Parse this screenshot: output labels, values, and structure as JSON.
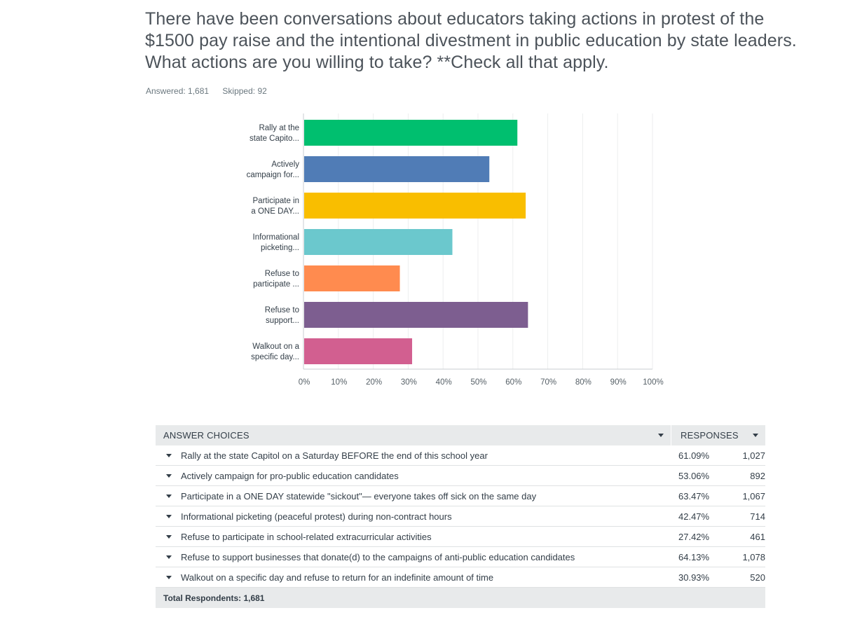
{
  "question": "There have been conversations about educators taking actions in protest of the $1500 pay raise and the intentional divestment in public education by state leaders. What actions are you willing to take? **Check all that apply.",
  "stats": {
    "answered": "Answered: 1,681",
    "skipped": "Skipped: 92"
  },
  "chart_data": {
    "type": "bar",
    "orientation": "horizontal",
    "categories": [
      [
        "Rally at the",
        "state Capito..."
      ],
      [
        "Actively",
        "campaign for..."
      ],
      [
        "Participate in",
        "a ONE DAY..."
      ],
      [
        "Informational",
        "picketing..."
      ],
      [
        "Refuse to",
        "participate ..."
      ],
      [
        "Refuse to",
        "support..."
      ],
      [
        "Walkout on a",
        "specific day..."
      ]
    ],
    "values": [
      61.09,
      53.06,
      63.47,
      42.47,
      27.42,
      64.13,
      30.93
    ],
    "colors": [
      "#00bf6f",
      "#507cb6",
      "#f9be00",
      "#6bc8cd",
      "#ff8b4f",
      "#7d5e90",
      "#d25f90"
    ],
    "xticks": [
      "0%",
      "10%",
      "20%",
      "30%",
      "40%",
      "50%",
      "60%",
      "70%",
      "80%",
      "90%",
      "100%"
    ],
    "xlim": [
      0,
      100
    ],
    "grid": true
  },
  "table": {
    "header_choices": "ANSWER CHOICES",
    "header_responses": "RESPONSES",
    "rows": [
      {
        "label": "Rally at the state Capitol on a Saturday BEFORE the end of this school year",
        "pct": "61.09%",
        "count": "1,027"
      },
      {
        "label": "Actively campaign for pro-public education candidates",
        "pct": "53.06%",
        "count": "892"
      },
      {
        "label": "Participate in a ONE DAY statewide \"sickout\"— everyone takes off sick on the same day",
        "pct": "63.47%",
        "count": "1,067"
      },
      {
        "label": "Informational picketing (peaceful protest) during non-contract hours",
        "pct": "42.47%",
        "count": "714"
      },
      {
        "label": "Refuse to participate in school-related extracurricular activities",
        "pct": "27.42%",
        "count": "461"
      },
      {
        "label": "Refuse to support businesses that donate(d) to the campaigns of anti-public education candidates",
        "pct": "64.13%",
        "count": "1,078"
      },
      {
        "label": "Walkout on a specific day and refuse to return for an indefinite amount of time",
        "pct": "30.93%",
        "count": "520"
      }
    ],
    "total": "Total Respondents: 1,681"
  }
}
